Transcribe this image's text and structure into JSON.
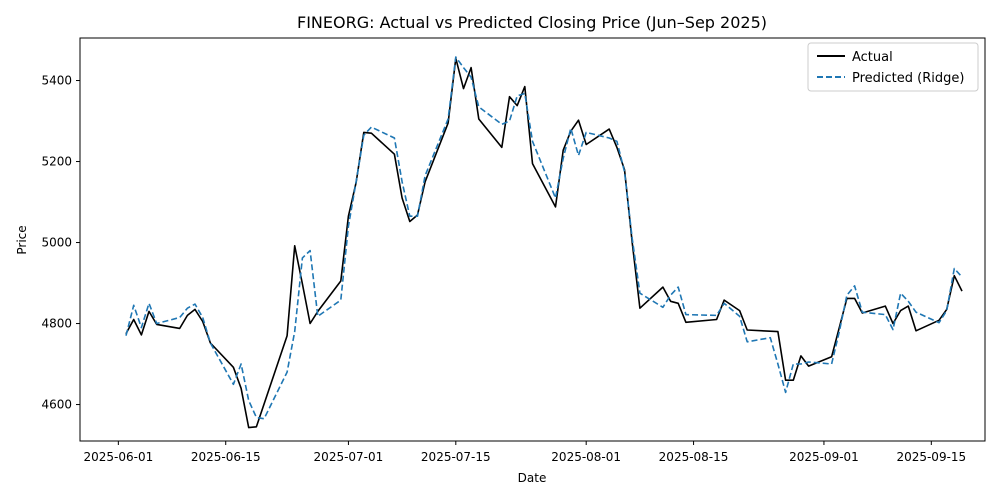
{
  "chart_data": {
    "type": "line",
    "title": "FINEORG: Actual vs Predicted Closing Price (Jun–Sep 2025)",
    "xlabel": "Date",
    "ylabel": "Price",
    "x_ticks": [
      "2025-06-01",
      "2025-06-15",
      "2025-07-01",
      "2025-07-15",
      "2025-08-01",
      "2025-08-15",
      "2025-09-01",
      "2025-09-15"
    ],
    "y_ticks": [
      4600,
      4800,
      5000,
      5200,
      5400
    ],
    "xlim": [
      "2025-05-27",
      "2025-09-22"
    ],
    "ylim": [
      4510,
      5505
    ],
    "legend_position": "top-right",
    "grid": false,
    "series": [
      {
        "name": "Actual",
        "color": "#000000",
        "style": "solid",
        "points": [
          [
            "2025-06-02",
            4775
          ],
          [
            "2025-06-03",
            4810
          ],
          [
            "2025-06-04",
            4772
          ],
          [
            "2025-06-05",
            4830
          ],
          [
            "2025-06-06",
            4798
          ],
          [
            "2025-06-09",
            4788
          ],
          [
            "2025-06-10",
            4820
          ],
          [
            "2025-06-11",
            4835
          ],
          [
            "2025-06-12",
            4805
          ],
          [
            "2025-06-13",
            4752
          ],
          [
            "2025-06-16",
            4692
          ],
          [
            "2025-06-17",
            4640
          ],
          [
            "2025-06-18",
            4543
          ],
          [
            "2025-06-19",
            4545
          ],
          [
            "2025-06-23",
            4770
          ],
          [
            "2025-06-24",
            4992
          ],
          [
            "2025-06-25",
            4898
          ],
          [
            "2025-06-26",
            4800
          ],
          [
            "2025-06-27",
            4830
          ],
          [
            "2025-06-30",
            4905
          ],
          [
            "2025-07-01",
            5065
          ],
          [
            "2025-07-02",
            5148
          ],
          [
            "2025-07-03",
            5272
          ],
          [
            "2025-07-04",
            5270
          ],
          [
            "2025-07-07",
            5218
          ],
          [
            "2025-07-08",
            5110
          ],
          [
            "2025-07-09",
            5052
          ],
          [
            "2025-07-10",
            5068
          ],
          [
            "2025-07-11",
            5150
          ],
          [
            "2025-07-14",
            5295
          ],
          [
            "2025-07-15",
            5455
          ],
          [
            "2025-07-16",
            5380
          ],
          [
            "2025-07-17",
            5432
          ],
          [
            "2025-07-18",
            5305
          ],
          [
            "2025-07-21",
            5235
          ],
          [
            "2025-07-22",
            5360
          ],
          [
            "2025-07-23",
            5338
          ],
          [
            "2025-07-24",
            5385
          ],
          [
            "2025-07-25",
            5195
          ],
          [
            "2025-07-28",
            5088
          ],
          [
            "2025-07-29",
            5228
          ],
          [
            "2025-07-30",
            5275
          ],
          [
            "2025-07-31",
            5302
          ],
          [
            "2025-08-01",
            5242
          ],
          [
            "2025-08-04",
            5280
          ],
          [
            "2025-08-05",
            5235
          ],
          [
            "2025-08-06",
            5180
          ],
          [
            "2025-08-07",
            5000
          ],
          [
            "2025-08-08",
            4838
          ],
          [
            "2025-08-11",
            4890
          ],
          [
            "2025-08-12",
            4855
          ],
          [
            "2025-08-13",
            4850
          ],
          [
            "2025-08-14",
            4803
          ],
          [
            "2025-08-18",
            4810
          ],
          [
            "2025-08-19",
            4858
          ],
          [
            "2025-08-21",
            4832
          ],
          [
            "2025-08-22",
            4784
          ],
          [
            "2025-08-26",
            4780
          ],
          [
            "2025-08-27",
            4660
          ],
          [
            "2025-08-28",
            4660
          ],
          [
            "2025-08-29",
            4720
          ],
          [
            "2025-08-30",
            4695
          ],
          [
            "2025-09-02",
            4718
          ],
          [
            "2025-09-03",
            4790
          ],
          [
            "2025-09-04",
            4862
          ],
          [
            "2025-09-05",
            4862
          ],
          [
            "2025-09-06",
            4826
          ],
          [
            "2025-09-09",
            4843
          ],
          [
            "2025-09-10",
            4800
          ],
          [
            "2025-09-11",
            4832
          ],
          [
            "2025-09-12",
            4843
          ],
          [
            "2025-09-13",
            4782
          ],
          [
            "2025-09-16",
            4808
          ],
          [
            "2025-09-17",
            4835
          ],
          [
            "2025-09-18",
            4918
          ],
          [
            "2025-09-19",
            4880
          ]
        ]
      },
      {
        "name": "Predicted (Ridge)",
        "color": "#1f77b4",
        "style": "dashed",
        "points": [
          [
            "2025-06-02",
            4770
          ],
          [
            "2025-06-03",
            4845
          ],
          [
            "2025-06-04",
            4790
          ],
          [
            "2025-06-05",
            4850
          ],
          [
            "2025-06-06",
            4800
          ],
          [
            "2025-06-09",
            4815
          ],
          [
            "2025-06-10",
            4838
          ],
          [
            "2025-06-11",
            4848
          ],
          [
            "2025-06-12",
            4815
          ],
          [
            "2025-06-13",
            4752
          ],
          [
            "2025-06-16",
            4650
          ],
          [
            "2025-06-17",
            4700
          ],
          [
            "2025-06-18",
            4610
          ],
          [
            "2025-06-19",
            4568
          ],
          [
            "2025-06-20",
            4565
          ],
          [
            "2025-06-23",
            4680
          ],
          [
            "2025-06-24",
            4780
          ],
          [
            "2025-06-25",
            4962
          ],
          [
            "2025-06-26",
            4980
          ],
          [
            "2025-06-27",
            4818
          ],
          [
            "2025-06-30",
            4858
          ],
          [
            "2025-07-01",
            5040
          ],
          [
            "2025-07-02",
            5150
          ],
          [
            "2025-07-03",
            5265
          ],
          [
            "2025-07-04",
            5285
          ],
          [
            "2025-07-07",
            5258
          ],
          [
            "2025-07-08",
            5150
          ],
          [
            "2025-07-09",
            5065
          ],
          [
            "2025-07-10",
            5065
          ],
          [
            "2025-07-11",
            5165
          ],
          [
            "2025-07-14",
            5305
          ],
          [
            "2025-07-15",
            5458
          ],
          [
            "2025-07-16",
            5432
          ],
          [
            "2025-07-17",
            5408
          ],
          [
            "2025-07-18",
            5335
          ],
          [
            "2025-07-21",
            5292
          ],
          [
            "2025-07-22",
            5300
          ],
          [
            "2025-07-23",
            5362
          ],
          [
            "2025-07-24",
            5368
          ],
          [
            "2025-07-25",
            5250
          ],
          [
            "2025-07-28",
            5110
          ],
          [
            "2025-07-29",
            5208
          ],
          [
            "2025-07-30",
            5282
          ],
          [
            "2025-07-31",
            5215
          ],
          [
            "2025-08-01",
            5272
          ],
          [
            "2025-08-04",
            5258
          ],
          [
            "2025-08-05",
            5250
          ],
          [
            "2025-08-06",
            5175
          ],
          [
            "2025-08-07",
            5010
          ],
          [
            "2025-08-08",
            4875
          ],
          [
            "2025-08-11",
            4840
          ],
          [
            "2025-08-12",
            4870
          ],
          [
            "2025-08-13",
            4890
          ],
          [
            "2025-08-14",
            4822
          ],
          [
            "2025-08-18",
            4820
          ],
          [
            "2025-08-19",
            4850
          ],
          [
            "2025-08-21",
            4818
          ],
          [
            "2025-08-22",
            4755
          ],
          [
            "2025-08-25",
            4765
          ],
          [
            "2025-08-26",
            4700
          ],
          [
            "2025-08-27",
            4630
          ],
          [
            "2025-08-28",
            4700
          ],
          [
            "2025-08-29",
            4700
          ],
          [
            "2025-08-30",
            4705
          ],
          [
            "2025-09-02",
            4700
          ],
          [
            "2025-09-03",
            4780
          ],
          [
            "2025-09-04",
            4870
          ],
          [
            "2025-09-05",
            4893
          ],
          [
            "2025-09-06",
            4828
          ],
          [
            "2025-09-09",
            4822
          ],
          [
            "2025-09-10",
            4785
          ],
          [
            "2025-09-11",
            4875
          ],
          [
            "2025-09-12",
            4855
          ],
          [
            "2025-09-13",
            4828
          ],
          [
            "2025-09-16",
            4802
          ],
          [
            "2025-09-17",
            4832
          ],
          [
            "2025-09-18",
            4936
          ],
          [
            "2025-09-19",
            4915
          ]
        ]
      }
    ]
  }
}
